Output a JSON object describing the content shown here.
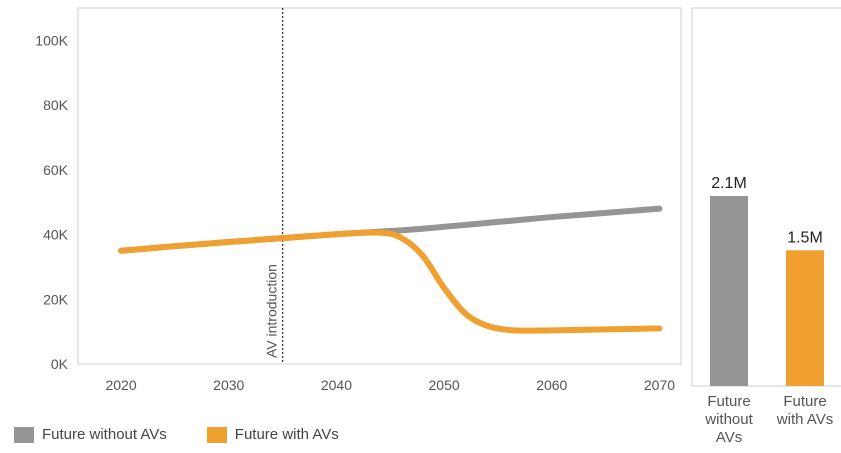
{
  "chart_data": [
    {
      "type": "line",
      "x": [
        2020,
        2025,
        2030,
        2035,
        2040,
        2044,
        2046,
        2048,
        2050,
        2052,
        2054,
        2056,
        2058,
        2060,
        2065,
        2070
      ],
      "series": [
        {
          "name": "Future without AVs",
          "color": "#959595",
          "values": [
            35000,
            36400,
            37700,
            38900,
            40100,
            40900,
            41300,
            41800,
            42400,
            43000,
            43600,
            44200,
            44800,
            45400,
            46700,
            48000
          ]
        },
        {
          "name": "Future with AVs",
          "color": "#F0A030",
          "values": [
            35000,
            36400,
            37700,
            38900,
            40100,
            40600,
            39000,
            33500,
            23500,
            15500,
            11800,
            10500,
            10300,
            10400,
            10700,
            11000
          ]
        }
      ],
      "xticks": [
        "2020",
        "2030",
        "2040",
        "2050",
        "2060",
        "2070"
      ],
      "yticks": [
        "0K",
        "20K",
        "40K",
        "60K",
        "80K",
        "100K"
      ],
      "xlim": [
        2016,
        2072
      ],
      "ylim": [
        0,
        110000
      ],
      "annotation": {
        "label": "AV introduction",
        "x": 2035
      },
      "grid": false
    },
    {
      "type": "bar",
      "categories": [
        {
          "lines": [
            "Future",
            "without",
            "AVs"
          ],
          "color": "#959595"
        },
        {
          "lines": [
            "Future",
            "with AVs"
          ],
          "color": "#F0A030"
        }
      ],
      "values": [
        2.1,
        1.5
      ],
      "labels": [
        "2.1M",
        "1.5M"
      ],
      "unit": "M"
    }
  ],
  "legend": [
    {
      "label": "Future without AVs",
      "color": "#959595"
    },
    {
      "label": "Future with AVs",
      "color": "#F0A030"
    }
  ]
}
